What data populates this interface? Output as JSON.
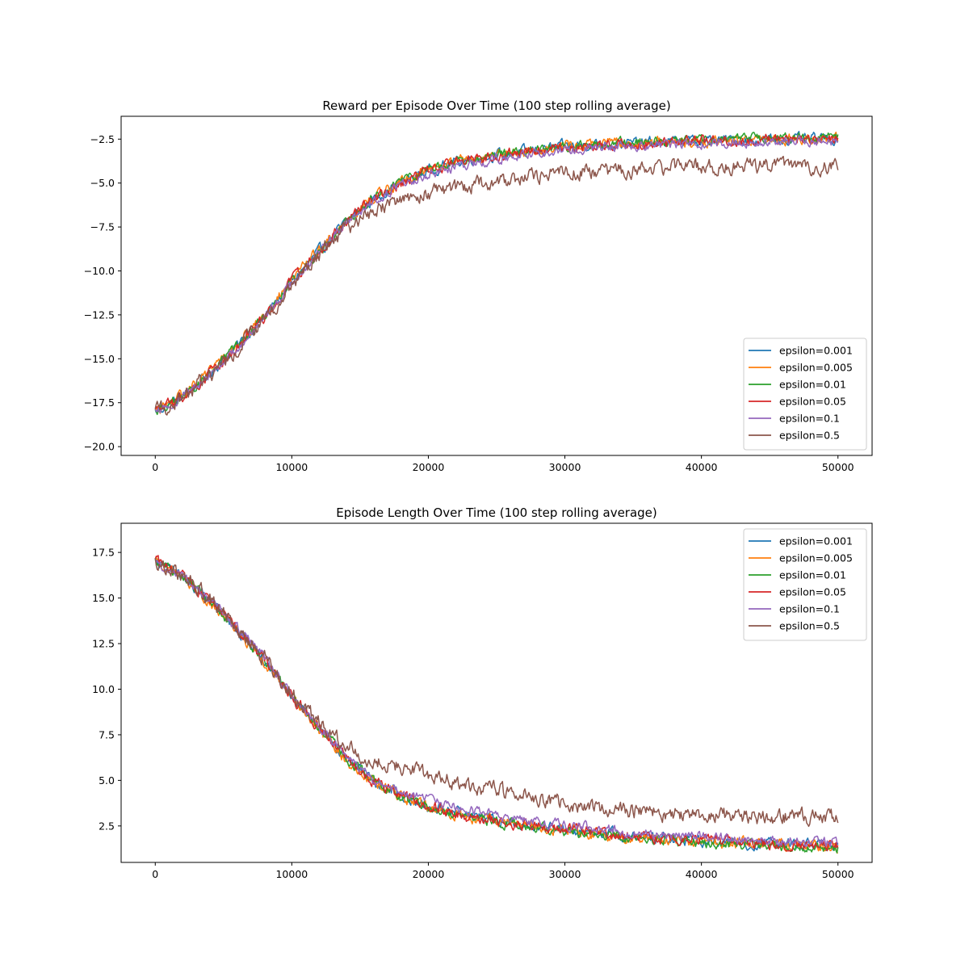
{
  "chart_data": [
    {
      "type": "line",
      "title": "Reward per Episode Over Time (100 step rolling average)",
      "xlabel": "",
      "ylabel": "",
      "xlim": [
        -2500,
        52500
      ],
      "ylim": [
        -20.5,
        -1.2
      ],
      "xticks": [
        0,
        10000,
        20000,
        30000,
        40000,
        50000
      ],
      "xtick_labels": [
        "0",
        "10000",
        "20000",
        "30000",
        "40000",
        "50000"
      ],
      "yticks": [
        -20.0,
        -17.5,
        -15.0,
        -12.5,
        -10.0,
        -7.5,
        -5.0,
        -2.5
      ],
      "ytick_labels": [
        "−20.0",
        "−17.5",
        "−15.0",
        "−12.5",
        "−10.0",
        "−7.5",
        "−5.0",
        "−2.5"
      ],
      "grid": false,
      "legend_position": "lower-right",
      "x": [
        0,
        2000,
        4000,
        6000,
        8000,
        10000,
        12000,
        14000,
        16000,
        18000,
        20000,
        22000,
        24000,
        26000,
        28000,
        30000,
        32000,
        34000,
        36000,
        38000,
        40000,
        42000,
        44000,
        46000,
        48000,
        50000
      ],
      "series": [
        {
          "name": "epsilon=0.001",
          "color": "#1f77b4",
          "values": [
            -18.0,
            -17.2,
            -15.8,
            -14.3,
            -12.6,
            -10.6,
            -8.9,
            -7.2,
            -5.9,
            -5.0,
            -4.3,
            -3.8,
            -3.5,
            -3.3,
            -3.1,
            -2.9,
            -2.8,
            -2.75,
            -2.7,
            -2.65,
            -2.6,
            -2.55,
            -2.55,
            -2.5,
            -2.5,
            -2.5
          ]
        },
        {
          "name": "epsilon=0.005",
          "color": "#ff7f0e",
          "values": [
            -18.0,
            -17.1,
            -15.7,
            -14.2,
            -12.5,
            -10.5,
            -8.8,
            -7.1,
            -5.8,
            -4.9,
            -4.2,
            -3.8,
            -3.5,
            -3.3,
            -3.1,
            -2.9,
            -2.8,
            -2.75,
            -2.7,
            -2.65,
            -2.6,
            -2.55,
            -2.5,
            -2.5,
            -2.45,
            -2.45
          ]
        },
        {
          "name": "epsilon=0.01",
          "color": "#2ca02c",
          "values": [
            -18.0,
            -17.2,
            -15.8,
            -14.3,
            -12.6,
            -10.6,
            -8.9,
            -7.2,
            -5.9,
            -4.9,
            -4.2,
            -3.8,
            -3.5,
            -3.3,
            -3.1,
            -2.9,
            -2.8,
            -2.7,
            -2.65,
            -2.6,
            -2.55,
            -2.5,
            -2.45,
            -2.45,
            -2.4,
            -2.4
          ]
        },
        {
          "name": "epsilon=0.05",
          "color": "#d62728",
          "values": [
            -18.0,
            -17.2,
            -15.8,
            -14.3,
            -12.6,
            -10.6,
            -8.9,
            -7.2,
            -5.9,
            -5.0,
            -4.3,
            -3.8,
            -3.6,
            -3.3,
            -3.1,
            -3.0,
            -2.85,
            -2.8,
            -2.75,
            -2.7,
            -2.65,
            -2.6,
            -2.55,
            -2.5,
            -2.5,
            -2.5
          ]
        },
        {
          "name": "epsilon=0.1",
          "color": "#9467bd",
          "values": [
            -18.0,
            -17.2,
            -15.9,
            -14.4,
            -12.7,
            -10.7,
            -9.0,
            -7.3,
            -6.0,
            -5.1,
            -4.5,
            -4.1,
            -3.8,
            -3.5,
            -3.3,
            -3.1,
            -3.0,
            -2.9,
            -2.85,
            -2.8,
            -2.75,
            -2.7,
            -2.65,
            -2.6,
            -2.6,
            -2.6
          ]
        },
        {
          "name": "epsilon=0.5",
          "color": "#8c564b",
          "values": [
            -18.0,
            -17.2,
            -15.9,
            -14.4,
            -12.7,
            -10.8,
            -9.1,
            -7.6,
            -6.6,
            -6.0,
            -5.6,
            -5.3,
            -5.0,
            -4.8,
            -4.6,
            -4.45,
            -4.35,
            -4.25,
            -4.2,
            -4.15,
            -4.1,
            -4.05,
            -4.05,
            -4.05,
            -4.05,
            -4.05
          ]
        }
      ]
    },
    {
      "type": "line",
      "title": "Episode Length Over Time (100 step rolling average)",
      "xlabel": "",
      "ylabel": "",
      "xlim": [
        -2500,
        52500
      ],
      "ylim": [
        0.5,
        19.1
      ],
      "xticks": [
        0,
        10000,
        20000,
        30000,
        40000,
        50000
      ],
      "xtick_labels": [
        "0",
        "10000",
        "20000",
        "30000",
        "40000",
        "50000"
      ],
      "yticks": [
        2.5,
        5.0,
        7.5,
        10.0,
        12.5,
        15.0,
        17.5
      ],
      "ytick_labels": [
        "2.5",
        "5.0",
        "7.5",
        "10.0",
        "12.5",
        "15.0",
        "17.5"
      ],
      "grid": false,
      "legend_position": "upper-right",
      "x": [
        0,
        2000,
        4000,
        6000,
        8000,
        10000,
        12000,
        14000,
        16000,
        18000,
        20000,
        22000,
        24000,
        26000,
        28000,
        30000,
        32000,
        34000,
        36000,
        38000,
        40000,
        42000,
        44000,
        46000,
        48000,
        50000
      ],
      "series": [
        {
          "name": "epsilon=0.001",
          "color": "#1f77b4",
          "values": [
            17.0,
            16.2,
            14.8,
            13.3,
            11.6,
            9.6,
            7.9,
            6.2,
            5.0,
            4.2,
            3.6,
            3.2,
            2.9,
            2.7,
            2.5,
            2.3,
            2.15,
            2.0,
            1.9,
            1.8,
            1.7,
            1.6,
            1.55,
            1.5,
            1.45,
            1.4
          ]
        },
        {
          "name": "epsilon=0.005",
          "color": "#ff7f0e",
          "values": [
            17.0,
            16.1,
            14.7,
            13.2,
            11.5,
            9.5,
            7.8,
            6.1,
            4.9,
            4.1,
            3.5,
            3.1,
            2.85,
            2.65,
            2.45,
            2.25,
            2.1,
            1.95,
            1.85,
            1.75,
            1.65,
            1.55,
            1.5,
            1.45,
            1.4,
            1.35
          ]
        },
        {
          "name": "epsilon=0.01",
          "color": "#2ca02c",
          "values": [
            17.0,
            16.2,
            14.8,
            13.3,
            11.6,
            9.6,
            7.9,
            6.2,
            5.0,
            4.1,
            3.5,
            3.1,
            2.85,
            2.6,
            2.4,
            2.2,
            2.05,
            1.9,
            1.8,
            1.7,
            1.6,
            1.5,
            1.45,
            1.4,
            1.35,
            1.3
          ]
        },
        {
          "name": "epsilon=0.05",
          "color": "#d62728",
          "values": [
            17.0,
            16.2,
            14.8,
            13.3,
            11.6,
            9.6,
            7.9,
            6.2,
            5.0,
            4.2,
            3.6,
            3.2,
            2.9,
            2.7,
            2.5,
            2.3,
            2.15,
            2.0,
            1.9,
            1.8,
            1.7,
            1.6,
            1.55,
            1.5,
            1.45,
            1.4
          ]
        },
        {
          "name": "epsilon=0.1",
          "color": "#9467bd",
          "values": [
            17.0,
            16.2,
            14.9,
            13.4,
            11.7,
            9.7,
            8.0,
            6.3,
            5.1,
            4.4,
            3.9,
            3.5,
            3.2,
            2.95,
            2.75,
            2.55,
            2.4,
            2.25,
            2.1,
            2.0,
            1.9,
            1.8,
            1.7,
            1.65,
            1.6,
            1.55
          ]
        },
        {
          "name": "epsilon=0.5",
          "color": "#8c564b",
          "values": [
            17.0,
            16.2,
            14.9,
            13.4,
            11.7,
            9.8,
            8.1,
            6.8,
            6.1,
            5.7,
            5.2,
            4.9,
            4.6,
            4.3,
            4.05,
            3.75,
            3.5,
            3.35,
            3.25,
            3.15,
            3.1,
            3.05,
            3.0,
            3.0,
            3.0,
            3.0
          ]
        }
      ]
    }
  ]
}
